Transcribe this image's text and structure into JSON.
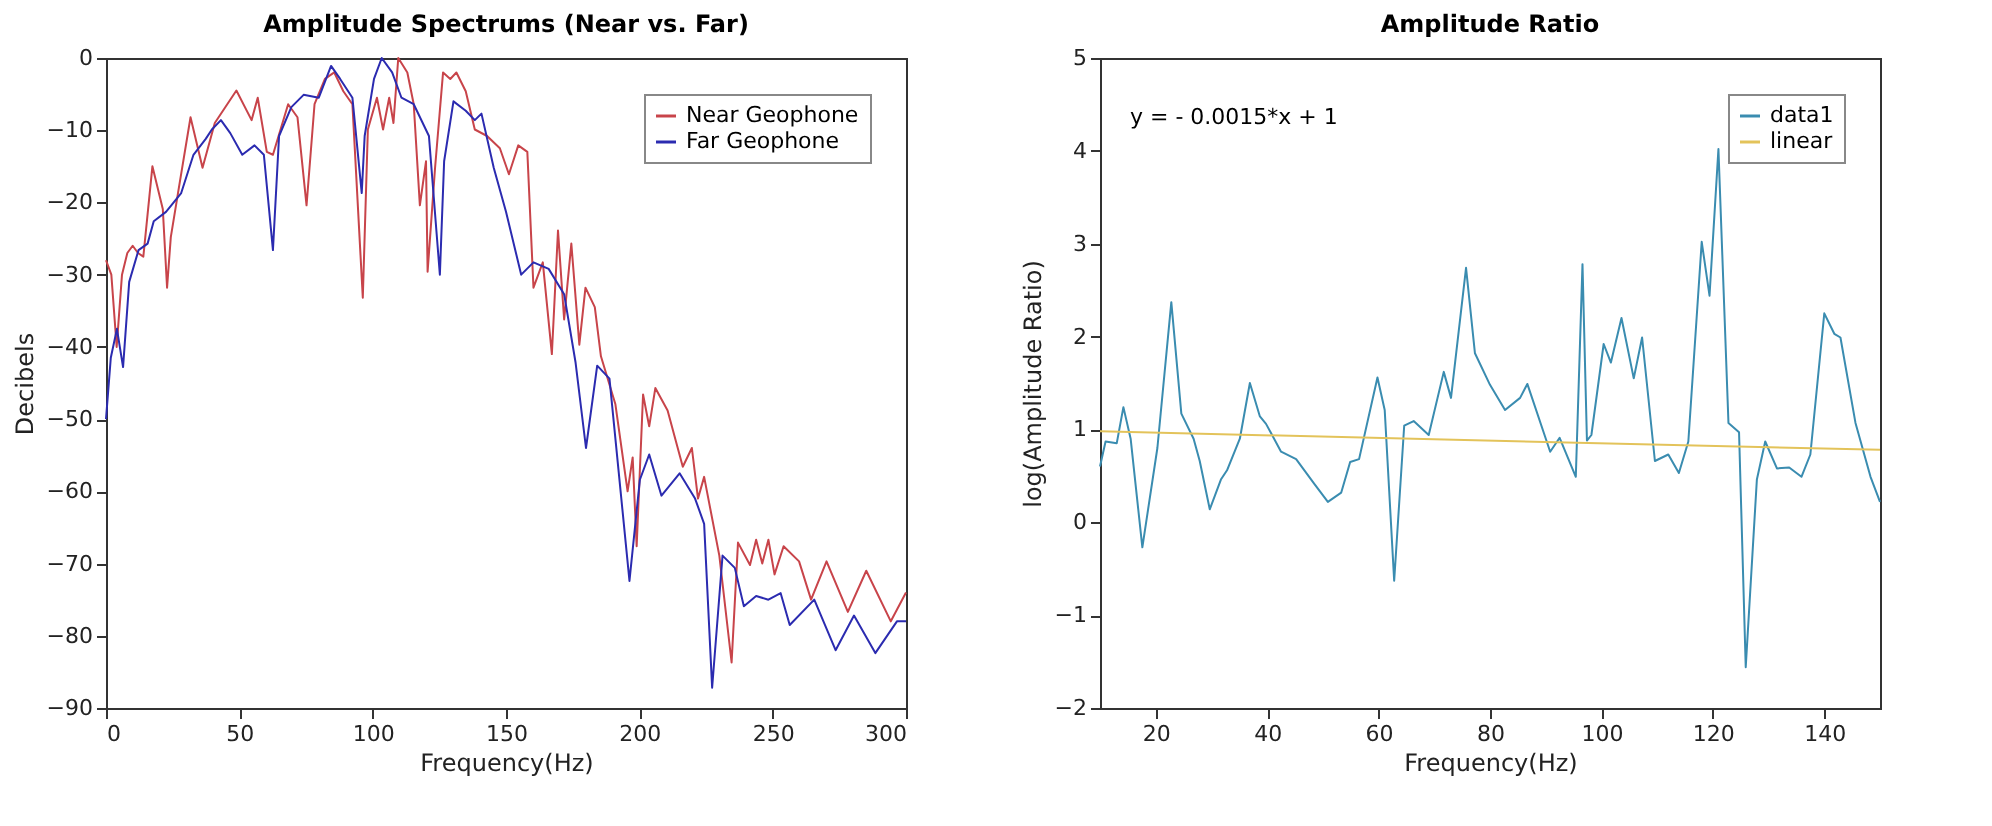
{
  "chart_data": [
    {
      "type": "line",
      "title": "Amplitude Spectrums (Near vs. Far)",
      "xlabel": "Frequency(Hz)",
      "ylabel": "Decibels",
      "xlim": [
        0,
        300
      ],
      "xticks": [
        0,
        50,
        100,
        150,
        200,
        250,
        300
      ],
      "ylim": [
        -90,
        0
      ],
      "yticks": [
        -90,
        -80,
        -70,
        -60,
        -50,
        -40,
        -30,
        -20,
        -10,
        0
      ],
      "grid": false,
      "legend": "top right",
      "marker": "none",
      "line_style": "solid",
      "series": [
        {
          "name": "Near Geophone",
          "color": "#c8444a",
          "x": [
            0,
            2,
            4,
            6,
            8,
            10,
            12,
            14,
            17.4,
            21.3,
            22.9,
            24.3,
            27,
            31.7,
            36.2,
            40.8,
            48.9,
            54.6,
            56.9,
            60.3,
            62.6,
            68.3,
            71.8,
            75.2,
            78.2,
            82.1,
            85.6,
            89,
            92.4,
            96.3,
            98.2,
            101.6,
            103.9,
            106.2,
            107.8,
            109.6,
            113,
            115.4,
            117.7,
            120,
            120.6,
            123.4,
            126.4,
            129.1,
            131.4,
            134.9,
            138.3,
            142.9,
            147.7,
            151.1,
            154.6,
            158,
            160.3,
            163.8,
            167.2,
            169.5,
            171.8,
            174.5,
            177.5,
            179.8,
            183.3,
            185.6,
            191,
            195.6,
            197.5,
            199,
            201.4,
            203.7,
            206,
            210.6,
            216.3,
            219.7,
            222,
            224.3,
            230,
            234.6,
            237,
            241.5,
            243.8,
            246.1,
            248.4,
            250.7,
            254.1,
            259.9,
            264.4,
            270.2,
            278.2,
            285.1,
            294.3,
            300
          ],
          "values": [
            -28,
            -30,
            -40,
            -30,
            -27,
            -26,
            -27,
            -27.5,
            -15,
            -20.9,
            -31.8,
            -24.8,
            -18.7,
            -8.2,
            -15.2,
            -9,
            -4.5,
            -8.6,
            -5.5,
            -13,
            -13.4,
            -6.4,
            -8.2,
            -20.4,
            -6.4,
            -2.9,
            -2,
            -4.6,
            -6.4,
            -33.2,
            -9.9,
            -5.5,
            -9.9,
            -5.5,
            -9,
            0,
            -2,
            -6.4,
            -20.4,
            -14.3,
            -29.6,
            -15.2,
            -2,
            -2.9,
            -2,
            -4.6,
            -9.9,
            -10.8,
            -12.5,
            -16.1,
            -12.1,
            -13,
            -31.8,
            -28.3,
            -41,
            -23.9,
            -36.2,
            -25.7,
            -39.7,
            -31.8,
            -34.5,
            -41.3,
            -47.9,
            -60,
            -55.3,
            -67.6,
            -46.6,
            -51,
            -45.7,
            -48.8,
            -56.6,
            -54,
            -61,
            -58,
            -68.9,
            -83.7,
            -67.1,
            -70.2,
            -66.7,
            -70,
            -66.7,
            -71.5,
            -67.6,
            -69.7,
            -75,
            -69.7,
            -76.7,
            -71,
            -78,
            -74
          ]
        },
        {
          "name": "Far Geophone",
          "color": "#2b2bb0",
          "x": [
            0,
            1.8,
            4.1,
            6.4,
            8.7,
            12.2,
            15.6,
            17.9,
            22.5,
            28.2,
            32.8,
            37.4,
            39.7,
            43.1,
            46.6,
            51.1,
            55.7,
            59.2,
            62.6,
            64.9,
            69.5,
            74.1,
            79.8,
            84.4,
            87.8,
            92.4,
            95.9,
            97,
            100.5,
            103.4,
            107.3,
            110.8,
            115.4,
            121.1,
            125.2,
            126.8,
            130.3,
            134.9,
            138.3,
            140.8,
            145.4,
            150,
            155.7,
            160.3,
            166,
            171.8,
            176.1,
            180,
            184.2,
            188.8,
            196.3,
            200.2,
            203.7,
            208.3,
            215.1,
            220.9,
            224.3,
            227.3,
            231.2,
            235.8,
            239.2,
            243.8,
            248.4,
            253,
            256.4,
            265.6,
            273.6,
            280.5,
            288.5,
            296.6,
            300
          ],
          "values": [
            -50,
            -41.5,
            -37.5,
            -42.8,
            -31,
            -26.6,
            -25.7,
            -22.6,
            -21.3,
            -18.7,
            -13.4,
            -11.2,
            -9.9,
            -8.6,
            -10.4,
            -13.4,
            -12.1,
            -13.4,
            -26.6,
            -10.8,
            -6.8,
            -5.1,
            -5.5,
            -1.1,
            -2.9,
            -5.5,
            -18.7,
            -10.8,
            -2.9,
            0,
            -2,
            -5.5,
            -6.4,
            -10.8,
            -30,
            -14.3,
            -6,
            -7.3,
            -8.6,
            -7.7,
            -15.2,
            -21.3,
            -30,
            -28.3,
            -29.2,
            -32.7,
            -42.2,
            -54,
            -42.6,
            -44.4,
            -72.4,
            -58.4,
            -54.9,
            -60.6,
            -57.5,
            -61,
            -64.5,
            -87.2,
            -68.9,
            -70.6,
            -75.9,
            -74.5,
            -75,
            -74.1,
            -78.5,
            -75,
            -82,
            -77.2,
            -82.4,
            -78,
            -78
          ]
        }
      ]
    },
    {
      "type": "line",
      "title": "Amplitude Ratio",
      "xlabel": "Frequency(Hz)",
      "ylabel": "log(Amplitude Ratio)",
      "xlim": [
        10,
        150
      ],
      "xticks": [
        20,
        40,
        60,
        80,
        100,
        120,
        140
      ],
      "ylim": [
        -2,
        5
      ],
      "yticks": [
        -2,
        -1,
        0,
        1,
        2,
        3,
        4,
        5
      ],
      "grid": false,
      "legend": "top right",
      "marker": "none",
      "line_style": "solid",
      "annotations": [
        "y = - 0.0015*x + 1"
      ],
      "series": [
        {
          "name": "data1",
          "color": "#3a8cb0",
          "x": [
            10,
            11,
            13,
            14.2,
            15.5,
            17.6,
            20.3,
            22.8,
            24.6,
            26.8,
            27.9,
            29.7,
            31.7,
            32.8,
            35.1,
            36.9,
            38.7,
            39.8,
            42.5,
            45.2,
            48.4,
            50.9,
            53.3,
            54.9,
            56.5,
            59.8,
            61.1,
            62.8,
            64.6,
            66.3,
            69,
            71.7,
            73,
            75.7,
            77.3,
            80,
            82.7,
            85.4,
            86.7,
            90.8,
            92.5,
            95.4,
            96.6,
            97.4,
            98.2,
            100.4,
            101.7,
            103.6,
            105.8,
            107.3,
            109.6,
            112,
            113.9,
            115.6,
            118,
            119.4,
            121,
            122.8,
            124.7,
            125.9,
            127.9,
            129.4,
            131.5,
            133.7,
            135.9,
            137.5,
            140,
            141.8,
            142.9,
            145.6,
            148.3,
            150
          ],
          "values": [
            0.6,
            0.87,
            0.85,
            1.24,
            0.9,
            -0.27,
            0.8,
            2.37,
            1.17,
            0.9,
            0.66,
            0.14,
            0.46,
            0.56,
            0.9,
            1.5,
            1.14,
            1.06,
            0.76,
            0.68,
            0.42,
            0.22,
            0.32,
            0.65,
            0.68,
            1.56,
            1.21,
            -0.63,
            1.04,
            1.09,
            0.94,
            1.62,
            1.34,
            2.74,
            1.82,
            1.48,
            1.21,
            1.34,
            1.49,
            0.76,
            0.91,
            0.49,
            2.78,
            0.88,
            0.94,
            1.92,
            1.72,
            2.2,
            1.55,
            1.99,
            0.66,
            0.73,
            0.53,
            0.87,
            3.02,
            2.44,
            4.02,
            1.07,
            0.97,
            -1.56,
            0.46,
            0.87,
            0.58,
            0.59,
            0.49,
            0.73,
            2.25,
            2.03,
            1.99,
            1.07,
            0.49,
            0.22
          ]
        },
        {
          "name": "linear",
          "color": "#e3c35a",
          "x": [
            10,
            150
          ],
          "values": [
            0.98,
            0.78
          ]
        }
      ]
    }
  ]
}
